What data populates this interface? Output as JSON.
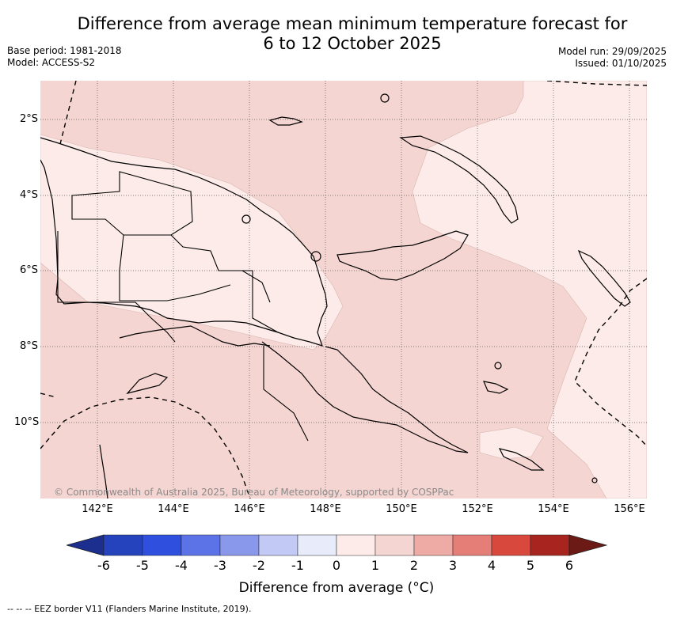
{
  "header": {
    "title_line1": "Difference from average mean minimum temperature forecast for",
    "title_line2": "6 to 12 October 2025",
    "base_period": "Base period: 1981-2018",
    "model": "Model: ACCESS-S2",
    "model_run": "Model run: 29/09/2025",
    "issued": "Issued: 01/10/2025"
  },
  "map": {
    "longitude_labels": [
      "142°E",
      "144°E",
      "146°E",
      "148°E",
      "150°E",
      "152°E",
      "154°E",
      "156°E"
    ],
    "latitude_labels": [
      "2°S",
      "4°S",
      "6°S",
      "8°S",
      "10°S"
    ],
    "copyright": "© Commonwealth of Australia 2025, Bureau of Meteorology, supported by COSPPac",
    "fill_colors": {
      "zero_to_one": "#fcebe8",
      "one_to_two": "#f5d5d1"
    }
  },
  "colorbar": {
    "ticks": [
      "-6",
      "-5",
      "-4",
      "-3",
      "-2",
      "-1",
      "0",
      "1",
      "2",
      "3",
      "4",
      "5",
      "6"
    ],
    "colors": [
      "#1c2e8e",
      "#2443bd",
      "#2f4fde",
      "#5c73e8",
      "#8a98ec",
      "#c3c9f5",
      "#e8ebfa",
      "#fcebe8",
      "#f5d5d1",
      "#eeaaa4",
      "#e47e77",
      "#d9483d",
      "#a8251f",
      "#6b1a16"
    ],
    "label": "Difference from average (°C)"
  },
  "footer": {
    "eez_note": "--  --  -- EEZ border V11 (Flanders Marine Institute, 2019)."
  }
}
